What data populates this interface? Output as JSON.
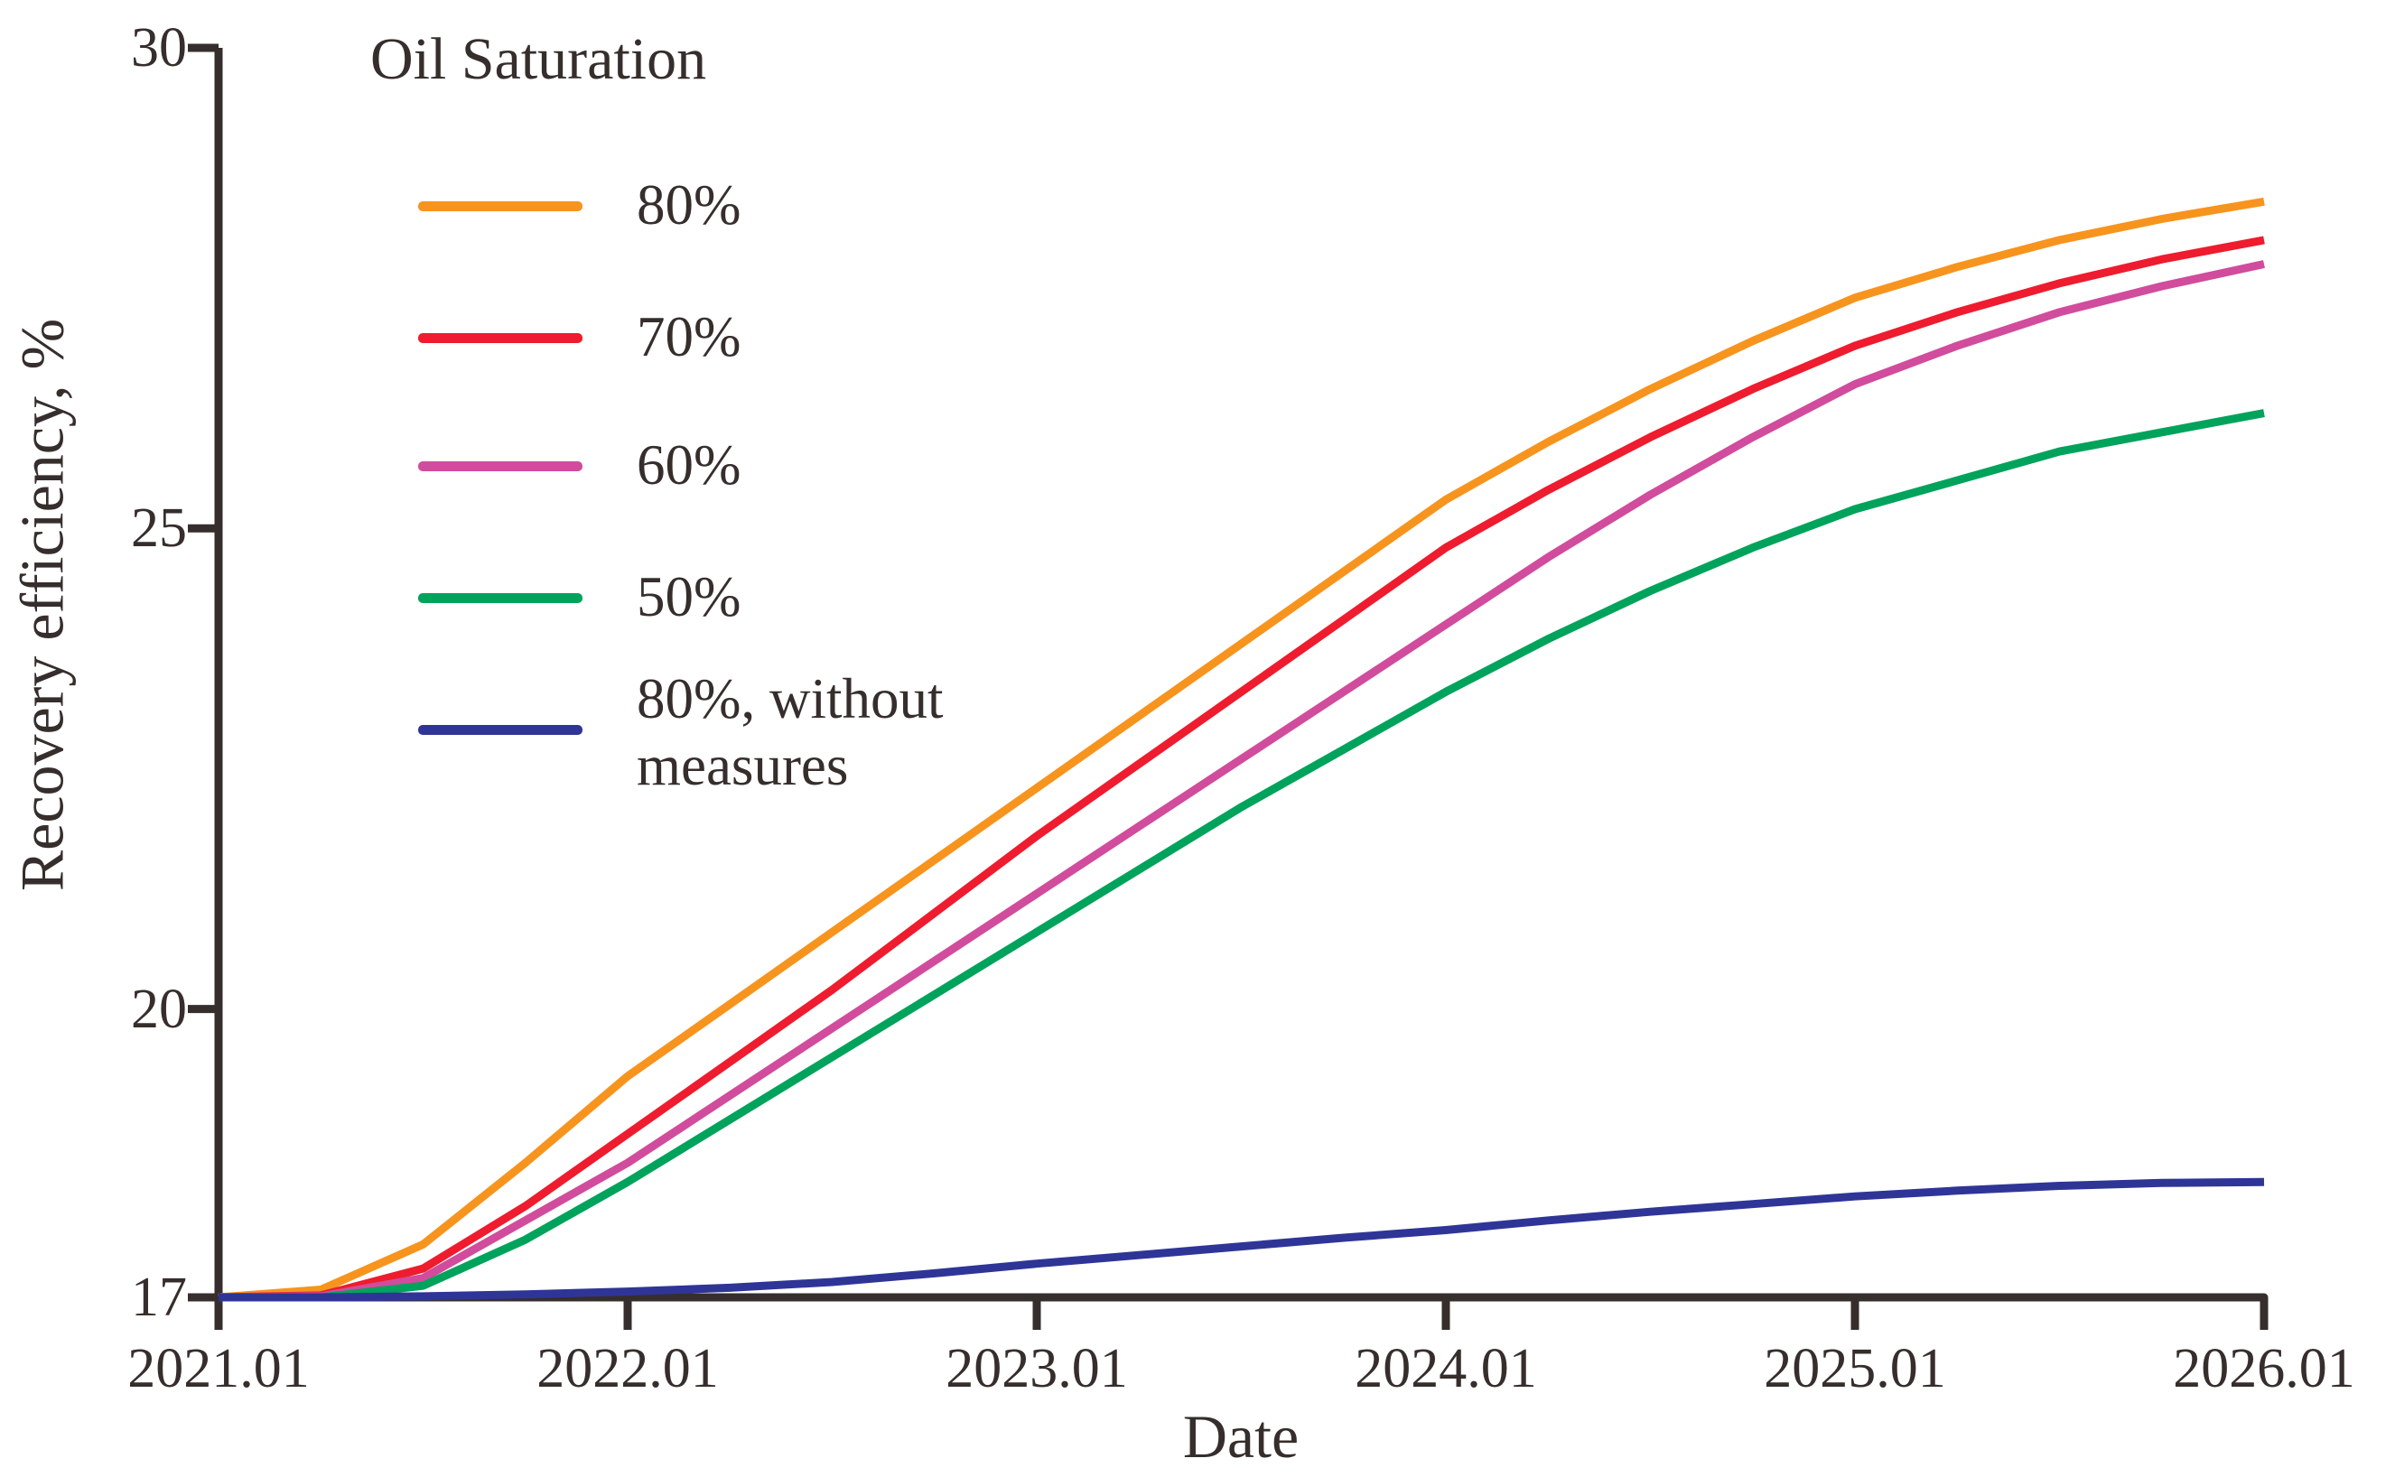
{
  "chart_data": {
    "type": "line",
    "title": "",
    "legend_title": "Oil Saturation",
    "xlabel": "Date",
    "ylabel": "Recovery efficiency, %",
    "xlim": [
      2021.0,
      2026.0
    ],
    "ylim": [
      17,
      30
    ],
    "grid": false,
    "legend_position": "inside upper-left",
    "x_tick_values": [
      2021,
      2022,
      2023,
      2024,
      2025,
      2026
    ],
    "x_tick_labels": [
      "2021.01",
      "2022.01",
      "2023.01",
      "2024.01",
      "2025.01",
      "2026.01"
    ],
    "y_tick_values": [
      17,
      20,
      25,
      30
    ],
    "y_tick_labels": [
      "17",
      "20",
      "25",
      "30"
    ],
    "x": [
      2021,
      2021.25,
      2021.5,
      2021.75,
      2022,
      2022.25,
      2022.5,
      2022.75,
      2023,
      2023.25,
      2023.5,
      2023.75,
      2024,
      2024.25,
      2024.5,
      2024.75,
      2025,
      2025.25,
      2025.5,
      2025.75,
      2026
    ],
    "series": [
      {
        "name": "80%",
        "legend_label": "80%",
        "color": "#F7941E",
        "values": [
          17,
          17.08,
          17.55,
          18.4,
          19.3,
          20.05,
          20.8,
          21.55,
          22.3,
          23.05,
          23.8,
          24.55,
          25.3,
          25.9,
          26.45,
          26.95,
          27.4,
          27.72,
          28.0,
          28.22,
          28.4
        ]
      },
      {
        "name": "70%",
        "legend_label": "70%",
        "color": "#EE1C2E",
        "values": [
          17,
          17.02,
          17.3,
          17.95,
          18.7,
          19.45,
          20.2,
          21.0,
          21.8,
          22.55,
          23.3,
          24.05,
          24.8,
          25.4,
          25.95,
          26.45,
          26.9,
          27.25,
          27.55,
          27.8,
          28.0
        ]
      },
      {
        "name": "60%",
        "legend_label": "60%",
        "color": "#D14C9C",
        "values": [
          17,
          17.01,
          17.2,
          17.8,
          18.4,
          19.1,
          19.8,
          20.5,
          21.2,
          21.9,
          22.6,
          23.3,
          24.0,
          24.7,
          25.35,
          25.95,
          26.5,
          26.9,
          27.25,
          27.52,
          27.75
        ]
      },
      {
        "name": "50%",
        "legend_label": "50%",
        "color": "#00A35B",
        "values": [
          17,
          17.0,
          17.12,
          17.6,
          18.2,
          18.85,
          19.5,
          20.15,
          20.8,
          21.45,
          22.1,
          22.7,
          23.3,
          23.85,
          24.35,
          24.8,
          25.2,
          25.5,
          25.8,
          26.0,
          26.2
        ]
      },
      {
        "name": "80%, without measures",
        "legend_label_line1": "80%, without",
        "legend_label_line2": "measures",
        "color": "#2F3597",
        "values": [
          17,
          17.0,
          17.01,
          17.03,
          17.06,
          17.1,
          17.16,
          17.25,
          17.35,
          17.44,
          17.53,
          17.62,
          17.7,
          17.8,
          17.89,
          17.97,
          18.05,
          18.11,
          18.16,
          18.19,
          18.2
        ]
      }
    ]
  },
  "colors": {
    "axis": "#362E2C",
    "text": "#362E2C",
    "background": "#FFFFFF"
  }
}
